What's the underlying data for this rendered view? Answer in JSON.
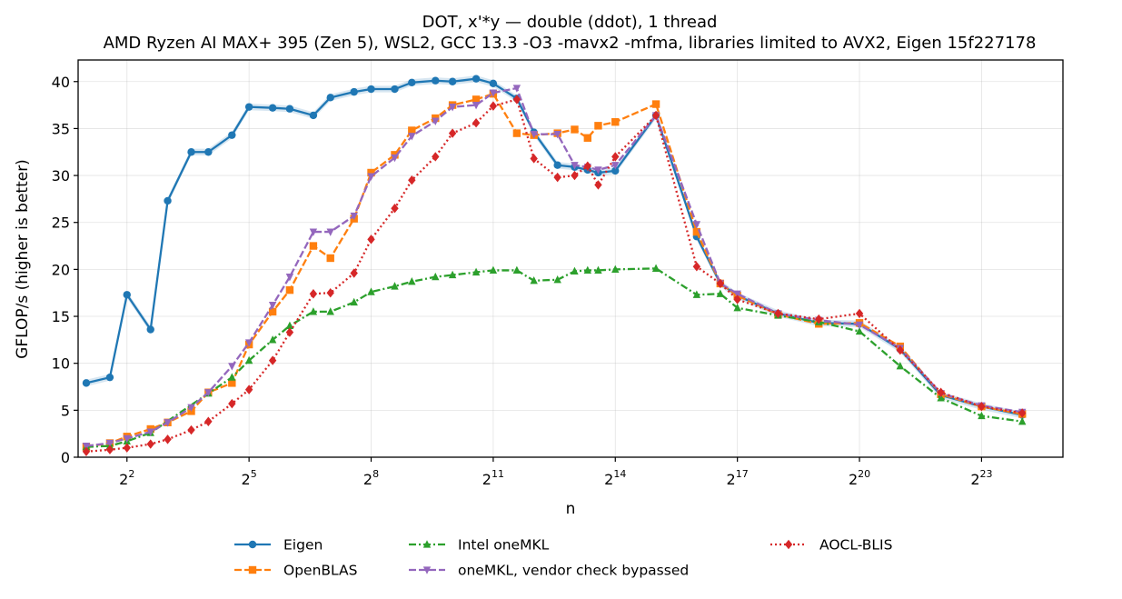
{
  "chart_data": {
    "type": "line",
    "title": "DOT, x'*y — double (ddot), 1 thread",
    "subtitle": "AMD Ryzen AI MAX+ 395 (Zen 5), WSL2, GCC 13.3 -O3 -mavx2 -mfma, libraries limited to AVX2, Eigen 15f227178",
    "xlabel": "n",
    "ylabel": "GFLOP/s (higher is better)",
    "x_scale": "log2",
    "x_ticks": [
      {
        "base": "2",
        "exp": "2"
      },
      {
        "base": "2",
        "exp": "5"
      },
      {
        "base": "2",
        "exp": "8"
      },
      {
        "base": "2",
        "exp": "11"
      },
      {
        "base": "2",
        "exp": "14"
      },
      {
        "base": "2",
        "exp": "17"
      },
      {
        "base": "2",
        "exp": "20"
      },
      {
        "base": "2",
        "exp": "23"
      }
    ],
    "xlim_log2": [
      0.8,
      25.0
    ],
    "ylim": [
      0,
      42.3
    ],
    "y_ticks": [
      "0",
      "5",
      "10",
      "15",
      "20",
      "25",
      "30",
      "35",
      "40"
    ],
    "grid": true,
    "legend_position": "bottom",
    "series": [
      {
        "name": "Eigen",
        "color": "#1f77b4",
        "marker": "circle",
        "dash": "solid",
        "x_log2": [
          1,
          1.58,
          2,
          2.58,
          3,
          3.58,
          4,
          4.58,
          5,
          5.58,
          6,
          6.58,
          7,
          7.58,
          8,
          8.58,
          9,
          9.58,
          10,
          10.58,
          11,
          11.58,
          12,
          12.58,
          13,
          13.32,
          13.58,
          14,
          15,
          16,
          16.58,
          17,
          18,
          19,
          20,
          21,
          22,
          23,
          24
        ],
        "y": [
          7.9,
          8.5,
          17.3,
          13.6,
          27.3,
          32.5,
          32.5,
          34.3,
          37.3,
          37.2,
          37.1,
          36.4,
          38.3,
          38.9,
          39.2,
          39.2,
          39.9,
          40.1,
          40.0,
          40.3,
          39.8,
          38.2,
          34.6,
          31.1,
          30.9,
          30.6,
          30.3,
          30.5,
          36.4,
          23.5,
          18.5,
          17.2,
          15.3,
          14.3,
          14.2,
          11.5,
          6.6,
          5.4,
          4.5
        ]
      },
      {
        "name": "OpenBLAS",
        "color": "#ff7f0e",
        "marker": "square",
        "dash": "dashed",
        "x_log2": [
          1,
          1.58,
          2,
          2.58,
          3,
          3.58,
          4,
          4.58,
          5,
          5.58,
          6,
          6.58,
          7,
          7.58,
          8,
          8.58,
          9,
          9.58,
          10,
          10.58,
          11,
          11.58,
          12,
          12.58,
          13,
          13.32,
          13.58,
          14,
          15,
          16,
          16.58,
          17,
          18,
          19,
          20,
          21,
          22,
          23,
          24
        ],
        "y": [
          1.1,
          1.5,
          2.2,
          3.0,
          3.7,
          4.9,
          6.9,
          7.9,
          12.0,
          15.5,
          17.8,
          22.5,
          21.2,
          25.4,
          30.3,
          32.2,
          34.8,
          36.1,
          37.5,
          38.1,
          38.7,
          34.5,
          34.3,
          34.5,
          34.9,
          34.0,
          35.3,
          35.7,
          37.6,
          24.0,
          18.5,
          17.2,
          15.2,
          14.2,
          14.3,
          11.8,
          6.7,
          5.4,
          4.6
        ]
      },
      {
        "name": "Intel oneMKL",
        "color": "#2ca02c",
        "marker": "triangle-up",
        "dash": "dashdot",
        "x_log2": [
          1,
          1.58,
          2,
          2.58,
          4,
          4.58,
          5,
          5.58,
          6,
          6.58,
          7,
          7.58,
          8,
          8.58,
          9,
          9.58,
          10,
          10.58,
          11,
          11.58,
          12,
          12.58,
          13,
          13.32,
          13.58,
          14,
          15,
          16,
          16.58,
          17,
          18,
          19,
          20,
          21,
          22,
          23,
          24
        ],
        "y": [
          1.1,
          1.2,
          1.7,
          2.6,
          6.8,
          8.5,
          10.3,
          12.5,
          14.0,
          15.5,
          15.5,
          16.5,
          17.6,
          18.2,
          18.7,
          19.2,
          19.4,
          19.7,
          19.9,
          19.9,
          18.8,
          18.9,
          19.8,
          19.9,
          19.9,
          20.0,
          20.1,
          17.3,
          17.4,
          15.9,
          15.1,
          14.4,
          13.4,
          9.7,
          6.3,
          4.4,
          3.8
        ]
      },
      {
        "name": "oneMKL, vendor check bypassed",
        "color": "#9467bd",
        "marker": "triangle-down",
        "dash": "dashed",
        "x_log2": [
          1,
          1.58,
          2,
          2.58,
          3,
          3.58,
          4,
          4.58,
          5,
          5.58,
          6,
          6.58,
          7,
          7.58,
          8,
          8.58,
          9,
          9.58,
          10,
          10.58,
          11,
          11.58,
          12,
          12.58,
          13,
          13.32,
          13.58,
          14,
          15,
          16,
          16.58,
          17,
          18,
          19,
          20,
          21,
          22,
          23,
          24
        ],
        "y": [
          1.2,
          1.5,
          2.0,
          2.7,
          3.7,
          5.3,
          6.9,
          9.7,
          12.2,
          16.2,
          19.2,
          24.0,
          24.0,
          25.7,
          29.9,
          31.9,
          34.2,
          35.8,
          37.3,
          37.5,
          38.8,
          39.3,
          34.4,
          34.4,
          31.1,
          30.9,
          30.6,
          31.1,
          36.4,
          24.8,
          18.5,
          17.4,
          15.3,
          14.6,
          14.1,
          11.6,
          6.8,
          5.5,
          4.8
        ]
      },
      {
        "name": "AOCL-BLIS",
        "color": "#d62728",
        "marker": "diamond",
        "dash": "dotted",
        "x_log2": [
          1,
          1.58,
          2,
          2.58,
          3,
          3.58,
          4,
          4.58,
          5,
          5.58,
          6,
          6.58,
          7,
          7.58,
          8,
          8.58,
          9,
          9.58,
          10,
          10.58,
          11,
          11.58,
          12,
          12.58,
          13,
          13.32,
          13.58,
          14,
          15,
          16,
          16.58,
          17,
          18,
          19,
          20,
          21,
          22,
          23,
          24
        ],
        "y": [
          0.6,
          0.8,
          1.0,
          1.4,
          1.9,
          2.9,
          3.8,
          5.7,
          7.2,
          10.3,
          13.3,
          17.4,
          17.5,
          19.6,
          23.2,
          26.5,
          29.5,
          32.0,
          34.5,
          35.6,
          37.4,
          38.1,
          31.8,
          29.8,
          30.0,
          31.0,
          29.0,
          32.0,
          36.4,
          20.3,
          18.5,
          16.8,
          15.3,
          14.7,
          15.3,
          11.4,
          6.9,
          5.4,
          4.7
        ]
      }
    ]
  }
}
